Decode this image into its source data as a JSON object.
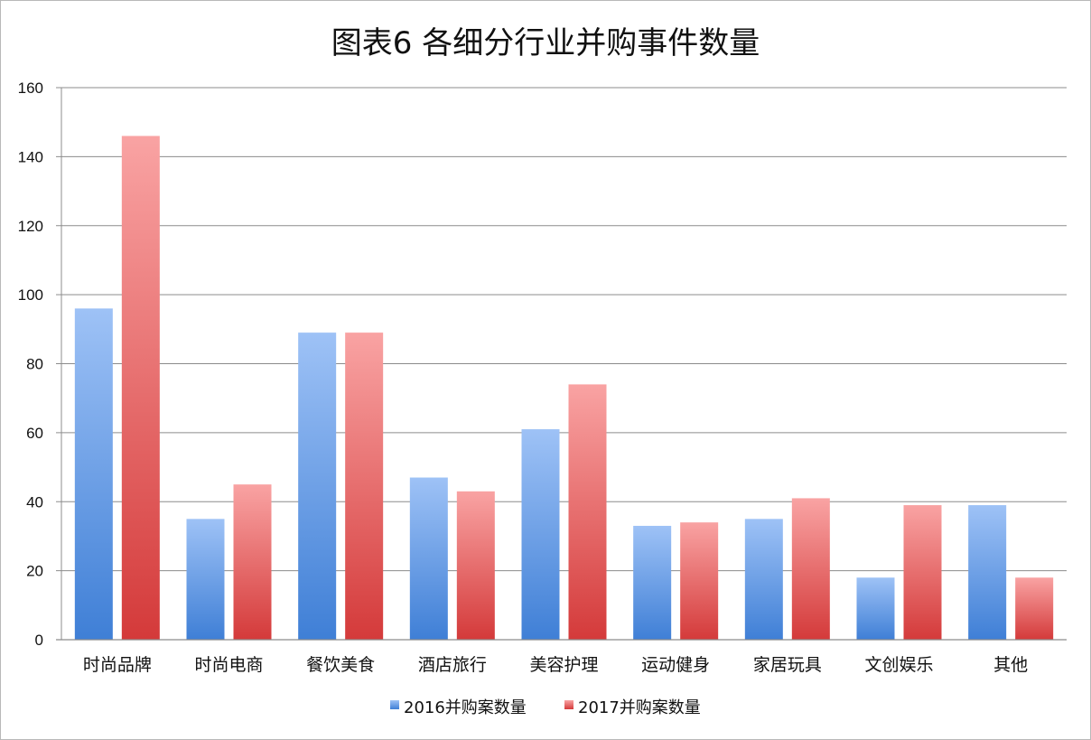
{
  "chart_data": {
    "type": "bar",
    "title": "图表6 各细分行业并购事件数量",
    "categories": [
      "时尚品牌",
      "时尚电商",
      "餐饮美食",
      "酒店旅行",
      "美容护理",
      "运动健身",
      "家居玩具",
      "文创娱乐",
      "其他"
    ],
    "series": [
      {
        "name": "2016并购案数量",
        "values": [
          96,
          35,
          89,
          47,
          61,
          33,
          35,
          18,
          39
        ],
        "color_top": "#9ec2f6",
        "color_bottom": "#3f7fd6"
      },
      {
        "name": "2017并购案数量",
        "values": [
          146,
          45,
          89,
          43,
          74,
          34,
          41,
          39,
          18
        ],
        "color_top": "#f9a3a3",
        "color_bottom": "#d43a3a"
      }
    ],
    "ylim": [
      0,
      160
    ],
    "yticks": [
      "0",
      "20",
      "40",
      "60",
      "80",
      "100",
      "120",
      "140",
      "160"
    ],
    "grid": true,
    "legend": "bottom"
  }
}
